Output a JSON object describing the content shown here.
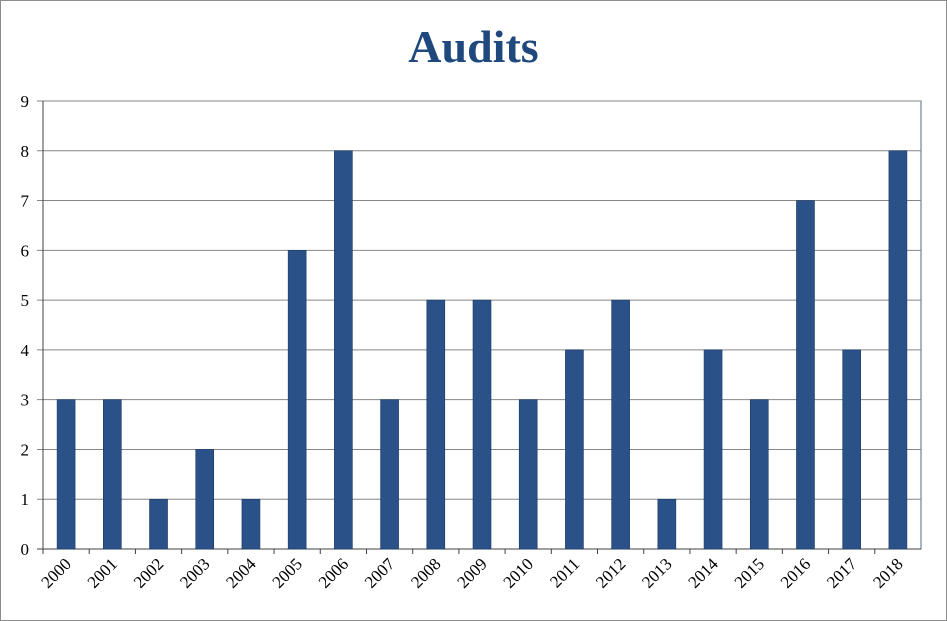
{
  "chart_data": {
    "type": "bar",
    "title": "Audits",
    "xlabel": "",
    "ylabel": "",
    "categories": [
      "2000",
      "2001",
      "2002",
      "2003",
      "2004",
      "2005",
      "2006",
      "2007",
      "2008",
      "2009",
      "2010",
      "2011",
      "2012",
      "2013",
      "2014",
      "2015",
      "2016",
      "2017",
      "2018"
    ],
    "values": [
      3,
      3,
      1,
      2,
      1,
      6,
      8,
      3,
      5,
      5,
      3,
      4,
      5,
      1,
      4,
      3,
      7,
      4,
      8
    ],
    "ylim": [
      0,
      9
    ],
    "yticks": [
      "0",
      "1",
      "2",
      "3",
      "4",
      "5",
      "6",
      "7",
      "8",
      "9"
    ],
    "grid": true,
    "legend": "none",
    "colors": {
      "bar": "#2a5188",
      "title": "#1f497d",
      "grid": "#868686",
      "plot_border": "#4a6d8c"
    }
  }
}
